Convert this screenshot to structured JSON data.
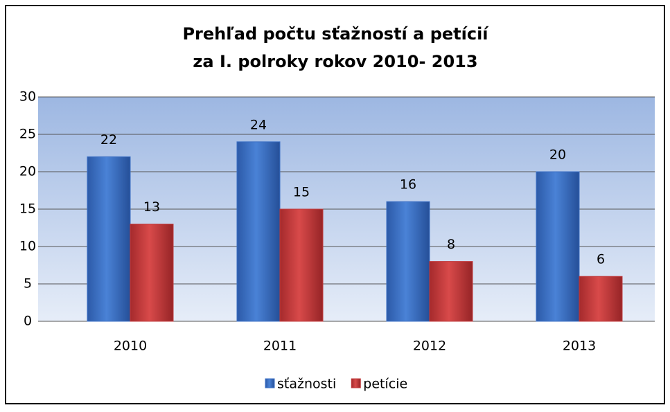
{
  "chart_data": {
    "type": "bar",
    "title": [
      "Prehľad počtu sťažností a petícií",
      "za I. polroky rokov 2010- 2013"
    ],
    "categories": [
      "2010",
      "2011",
      "2012",
      "2013"
    ],
    "series": [
      {
        "name": "sťažnosti",
        "color": "#3b6fc4",
        "values": [
          22,
          24,
          16,
          20
        ]
      },
      {
        "name": "petície",
        "color": "#c0393b",
        "values": [
          13,
          15,
          8,
          6
        ]
      }
    ],
    "ylim": [
      0,
      30
    ],
    "yticks": [
      0,
      5,
      10,
      15,
      20,
      25,
      30
    ],
    "grid": true,
    "legend": "bottom"
  }
}
